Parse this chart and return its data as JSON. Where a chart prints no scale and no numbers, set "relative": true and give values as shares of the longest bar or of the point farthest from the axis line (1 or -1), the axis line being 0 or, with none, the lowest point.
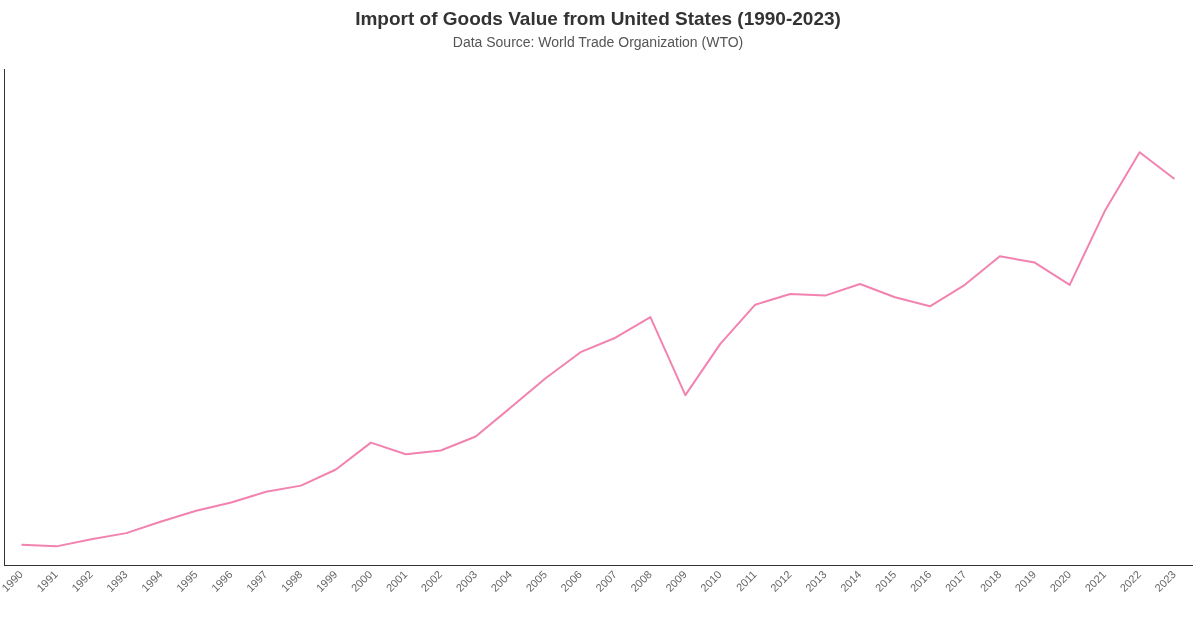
{
  "chart_data": {
    "type": "line",
    "title": "Import of Goods Value from United States (1990-2023)",
    "subtitle": "Data Source: World Trade Organization (WTO)",
    "relative": true,
    "categories": [
      "1990",
      "1991",
      "1992",
      "1993",
      "1994",
      "1995",
      "1996",
      "1997",
      "1998",
      "1999",
      "2000",
      "2001",
      "2002",
      "2003",
      "2004",
      "2005",
      "2006",
      "2007",
      "2008",
      "2009",
      "2010",
      "2011",
      "2012",
      "2013",
      "2014",
      "2015",
      "2016",
      "2017",
      "2018",
      "2019",
      "2020",
      "2021",
      "2022",
      "2023"
    ],
    "series": [
      {
        "color": "#f283b0",
        "values": [
          0.05,
          0.046,
          0.063,
          0.078,
          0.106,
          0.132,
          0.152,
          0.178,
          0.193,
          0.232,
          0.297,
          0.269,
          0.278,
          0.312,
          0.382,
          0.453,
          0.516,
          0.551,
          0.601,
          0.412,
          0.536,
          0.631,
          0.657,
          0.653,
          0.681,
          0.649,
          0.627,
          0.679,
          0.748,
          0.733,
          0.679,
          0.857,
          1,
          0.935
        ]
      }
    ],
    "grid": false,
    "legend": false,
    "marker": "none",
    "line_style": "solid"
  }
}
